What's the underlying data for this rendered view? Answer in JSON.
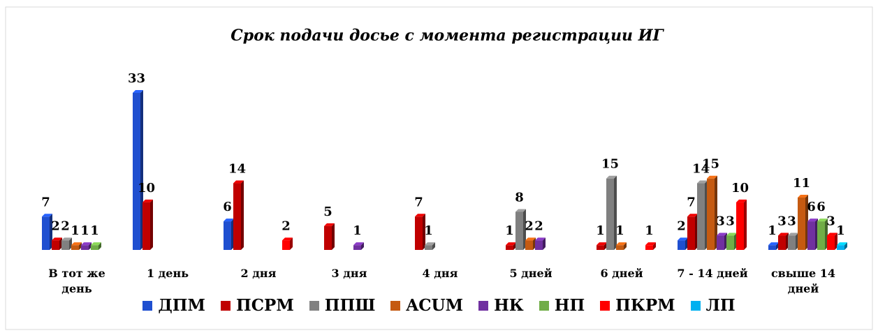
{
  "chart_data": {
    "type": "bar",
    "title": "Срок подачи досье с момента регистрации ИГ",
    "categories": [
      "В тот же день",
      "1 день",
      "2 дня",
      "3 дня",
      "4 дня",
      "5 дней",
      "6 дней",
      "7 - 14 дней",
      "свыше 14 дней"
    ],
    "series": [
      {
        "name": "ДПМ",
        "color": "#1f4fd0",
        "values": [
          7,
          33,
          6,
          null,
          null,
          null,
          null,
          2,
          1
        ]
      },
      {
        "name": "ПСРМ",
        "color": "#c00000",
        "values": [
          2,
          10,
          14,
          5,
          7,
          1,
          1,
          7,
          3
        ]
      },
      {
        "name": "ППШ",
        "color": "#808080",
        "values": [
          2,
          null,
          null,
          null,
          1,
          8,
          15,
          14,
          3
        ]
      },
      {
        "name": "ACUM",
        "color": "#c55a11",
        "values": [
          1,
          null,
          null,
          null,
          null,
          2,
          1,
          15,
          11
        ]
      },
      {
        "name": "НК",
        "color": "#7030a0",
        "values": [
          1,
          null,
          null,
          1,
          null,
          2,
          null,
          3,
          6
        ]
      },
      {
        "name": "НП",
        "color": "#70ad47",
        "values": [
          1,
          null,
          null,
          null,
          null,
          null,
          null,
          3,
          6
        ]
      },
      {
        "name": "ПКРМ",
        "color": "#ff0000",
        "values": [
          null,
          null,
          2,
          null,
          null,
          null,
          1,
          10,
          3
        ]
      },
      {
        "name": "ЛП",
        "color": "#00b0f0",
        "values": [
          null,
          null,
          null,
          null,
          null,
          null,
          null,
          null,
          1
        ]
      }
    ],
    "legend": "bottom"
  }
}
